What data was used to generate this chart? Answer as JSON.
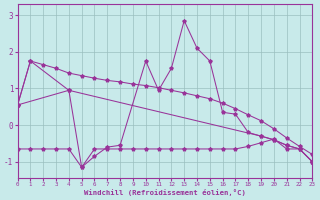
{
  "bg_color": "#c8eaea",
  "line_color": "#993399",
  "grid_color": "#9bbfbf",
  "xlabel": "Windchill (Refroidissement éolien,°C)",
  "ylim": [
    -1.45,
    3.3
  ],
  "xlim": [
    0,
    23
  ],
  "yticks": [
    -1,
    0,
    1,
    2,
    3
  ],
  "xticks": [
    0,
    1,
    2,
    3,
    4,
    5,
    6,
    7,
    8,
    9,
    10,
    11,
    12,
    13,
    14,
    15,
    16,
    17,
    18,
    19,
    20,
    21,
    22,
    23
  ],
  "line_smooth": {
    "x": [
      0,
      1,
      2,
      3,
      4,
      5,
      6,
      7,
      8,
      9,
      10,
      11,
      12,
      13,
      14,
      15,
      16,
      17,
      18,
      19,
      20,
      21,
      22,
      23
    ],
    "y": [
      0.55,
      1.75,
      1.65,
      1.55,
      1.42,
      1.35,
      1.28,
      1.22,
      1.18,
      1.12,
      1.08,
      1.02,
      0.95,
      0.88,
      0.8,
      0.72,
      0.6,
      0.45,
      0.28,
      0.12,
      -0.1,
      -0.35,
      -0.58,
      -0.8
    ]
  },
  "line_jagged": {
    "x": [
      0,
      1,
      4,
      5,
      6,
      7,
      8,
      10,
      11,
      12,
      13,
      14,
      15,
      16,
      17,
      18,
      19,
      20,
      21,
      22,
      23
    ],
    "y": [
      0.55,
      1.75,
      0.95,
      -1.15,
      -0.85,
      -0.6,
      -0.55,
      1.75,
      0.95,
      1.55,
      2.85,
      2.1,
      1.75,
      0.35,
      0.3,
      -0.2,
      -0.3,
      -0.4,
      -0.55,
      -0.65,
      -1.0
    ]
  },
  "line_flat": {
    "x": [
      0,
      1,
      2,
      3,
      4,
      5,
      6,
      7,
      8,
      9,
      10,
      11,
      12,
      13,
      14,
      15,
      16,
      17,
      18,
      19,
      20,
      21,
      22,
      23
    ],
    "y": [
      -0.65,
      -0.65,
      -0.65,
      -0.65,
      -0.65,
      -1.15,
      -0.65,
      -0.65,
      -0.65,
      -0.65,
      -0.65,
      -0.65,
      -0.65,
      -0.65,
      -0.65,
      -0.65,
      -0.65,
      -0.65,
      -0.58,
      -0.48,
      -0.38,
      -0.65,
      -0.65,
      -1.0
    ]
  },
  "line_diag": {
    "x": [
      0,
      4,
      19,
      20,
      21,
      22,
      23
    ],
    "y": [
      0.55,
      0.95,
      -0.3,
      -0.4,
      -0.55,
      -0.65,
      -1.0
    ]
  }
}
